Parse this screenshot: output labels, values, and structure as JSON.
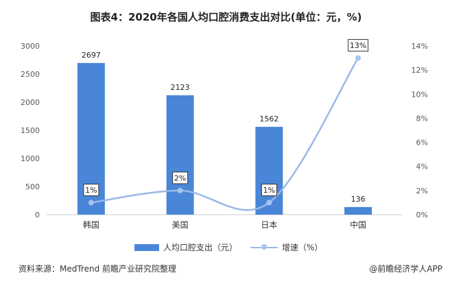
{
  "chart_data": {
    "type": "bar",
    "title": "图表4：2020年各国人均口腔消费支出对比(单位：元，%)",
    "categories": [
      "韩国",
      "美国",
      "日本",
      "中国"
    ],
    "series": [
      {
        "name": "人均口腔支出（元）",
        "kind": "bar",
        "axis": "left",
        "values": [
          2697,
          2123,
          1562,
          136
        ],
        "labels": [
          "2697",
          "2123",
          "1562",
          "136"
        ]
      },
      {
        "name": "增速（%）",
        "kind": "line",
        "axis": "right",
        "smooth": true,
        "values": [
          1,
          2,
          1,
          13
        ],
        "labels": [
          "1%",
          "2%",
          "1%",
          "13%"
        ]
      }
    ],
    "ylim_left": [
      0,
      3000
    ],
    "yticks_left": [
      "0",
      "500",
      "1000",
      "1500",
      "2000",
      "2500",
      "3000"
    ],
    "ylim_right": [
      0,
      14
    ],
    "yticks_right": [
      "0%",
      "2%",
      "4%",
      "6%",
      "8%",
      "10%",
      "12%",
      "14%"
    ],
    "legend_position": "bottom",
    "colors": {
      "bar": "#4a86d8",
      "line": "#9ab8e6",
      "point": "#a9c4ec"
    }
  },
  "footer": {
    "source": "资料来源：MedTrend 前瞻产业研究院整理",
    "brand": "@前瞻经济学人APP"
  }
}
